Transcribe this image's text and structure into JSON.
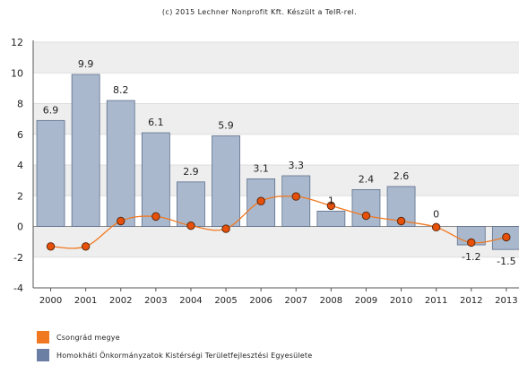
{
  "copyright": "(c) 2015 Lechner Nonprofit Kft. Készült a TeIR-rel.",
  "chart_data": {
    "type": "bar",
    "categories": [
      "2000",
      "2001",
      "2002",
      "2003",
      "2004",
      "2005",
      "2006",
      "2007",
      "2008",
      "2009",
      "2010",
      "2011",
      "2012",
      "2013"
    ],
    "y_ticks": [
      "-4",
      "-2",
      "0",
      "2",
      "4",
      "6",
      "8",
      "10",
      "12"
    ],
    "ylim": [
      -4,
      12
    ],
    "grid": "horizontal alternating bands",
    "legend_position": "bottom-left",
    "series": [
      {
        "name": "Csongrád megye",
        "type": "line",
        "color": "#f07820",
        "marker_color": "#e8500a",
        "values": [
          -1.3,
          -1.3,
          0.35,
          0.65,
          0.05,
          -0.15,
          1.65,
          1.95,
          1.35,
          0.7,
          0.35,
          -0.05,
          -1.05,
          -0.7
        ]
      },
      {
        "name": "Homokháti Önkormányzatok Kistérségi Területfejlesztési Egyesülete",
        "type": "bar",
        "color": "#a9b8cc",
        "stroke": "#5e6f8c",
        "legend_color": "#6a7fa3",
        "values": [
          6.9,
          9.9,
          8.2,
          6.1,
          2.9,
          5.9,
          3.1,
          3.3,
          1,
          2.4,
          2.6,
          0,
          -1.2,
          -1.5
        ],
        "labels": [
          "6.9",
          "9.9",
          "8.2",
          "6.1",
          "2.9",
          "5.9",
          "3.1",
          "3.3",
          "1",
          "2.4",
          "2.6",
          "0",
          "-1.2",
          "-1.5"
        ]
      }
    ]
  }
}
